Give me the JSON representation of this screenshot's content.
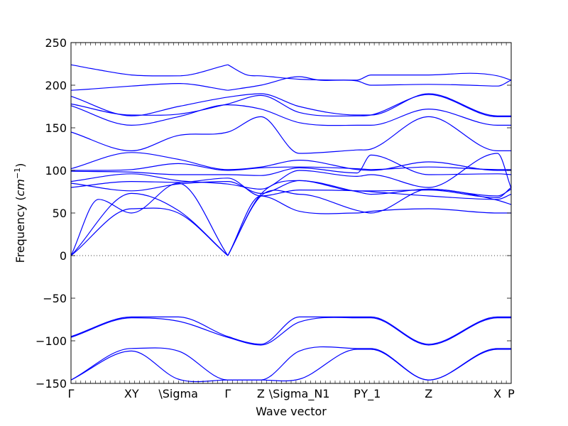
{
  "chart_data": {
    "type": "line",
    "title": "",
    "xlabel": "Wave vector",
    "ylabel_main": "Frequency (",
    "ylabel_unit": "cm",
    "ylabel_exp": "−1",
    "ylabel_close": ")",
    "xlim": [
      0,
      16
    ],
    "ylim": [
      -150,
      250
    ],
    "yticks": [
      -150,
      -100,
      -50,
      0,
      50,
      100,
      150,
      200,
      250
    ],
    "ytick_labels": [
      "−150",
      "−100",
      "−50",
      "0",
      "50",
      "100",
      "150",
      "200",
      "250"
    ],
    "high_symmetry_points": [
      {
        "x": 0.0,
        "label": "Γ"
      },
      {
        "x": 2.2,
        "label": "XY"
      },
      {
        "x": 3.9,
        "label": "\\Sigma"
      },
      {
        "x": 5.7,
        "label": "Γ"
      },
      {
        "x": 6.9,
        "label": "Z"
      },
      {
        "x": 8.3,
        "label": "\\Sigma_N1"
      },
      {
        "x": 10.4,
        "label": "P"
      },
      {
        "x": 10.9,
        "label": "Y_1"
      },
      {
        "x": 13.0,
        "label": "Z"
      },
      {
        "x": 15.5,
        "label": "X"
      },
      {
        "x": 16.0,
        "label": "P"
      }
    ],
    "zero_line": true,
    "grid": false,
    "legend": "none",
    "line_color": "#0000ff",
    "series": [
      {
        "x": [
          0,
          1.0,
          2.2,
          3.9,
          5.7
        ],
        "values": [
          224,
          218,
          212,
          211,
          224
        ]
      },
      {
        "x": [
          5.7,
          6.4,
          6.9,
          8.3,
          10.4,
          10.9,
          13.0,
          14.5,
          15.5,
          16.0
        ],
        "values": [
          224,
          212,
          211,
          207,
          206,
          212,
          212,
          214,
          211,
          206
        ]
      },
      {
        "x": [
          0,
          0.5,
          2.2,
          3.9,
          5.7
        ],
        "values": [
          194,
          195,
          199,
          202,
          194
        ]
      },
      {
        "x": [
          5.7,
          6.9,
          8.3,
          9.0,
          10.4,
          10.9,
          13.0,
          14.5,
          15.5,
          16.0
        ],
        "values": [
          194,
          200,
          210,
          206,
          205,
          200,
          201,
          200,
          199,
          206
        ]
      },
      {
        "x": [
          0,
          2.2,
          3.9,
          5.7,
          6.9,
          8.3,
          10.4,
          10.9,
          13.0,
          15.5,
          16.0
        ],
        "values": [
          187,
          164,
          175,
          186,
          190,
          175,
          165,
          165,
          190,
          164,
          164
        ]
      },
      {
        "x": [
          0,
          2.2,
          3.9,
          5.7,
          6.9,
          8.3,
          10.4,
          10.9,
          13.0,
          15.5,
          16.0
        ],
        "values": [
          178,
          165,
          166,
          178,
          188,
          168,
          164,
          165,
          189,
          163,
          163
        ]
      },
      {
        "x": [
          0,
          2.2,
          3.9,
          5.7,
          6.9,
          8.3,
          10.4,
          10.9,
          13.0,
          15.5,
          16.0
        ],
        "values": [
          176,
          153,
          163,
          177,
          172,
          156,
          153,
          153,
          172,
          153,
          153
        ]
      },
      {
        "x": [
          0,
          2.2,
          3.9,
          5.7,
          6.9,
          8.3,
          10.4,
          10.9,
          13.0,
          15.5,
          16.0
        ],
        "values": [
          145,
          123,
          141,
          145,
          163,
          120,
          124,
          125,
          163,
          123,
          123
        ]
      },
      {
        "x": [
          0,
          2.2,
          3.9,
          5.7,
          6.9,
          8.3,
          10.4,
          10.9,
          13.0,
          15.5,
          16.0
        ],
        "values": [
          102,
          121,
          113,
          101,
          104,
          112,
          101,
          100,
          110,
          100,
          100
        ]
      },
      {
        "x": [
          0,
          2.2,
          3.9,
          5.7,
          6.9,
          8.3,
          10.4,
          10.9,
          13.0,
          15.5,
          16.0
        ],
        "values": [
          100,
          101,
          108,
          100,
          103,
          104,
          102,
          101,
          104,
          101,
          101
        ]
      },
      {
        "x": [
          0,
          2.2,
          3.9,
          5.7,
          6.9,
          8.3,
          10.4,
          10.9,
          13.0,
          15.5,
          16.0
        ],
        "values": [
          99,
          98,
          95,
          95,
          94,
          103,
          97,
          118,
          95,
          96,
          95
        ]
      },
      {
        "x": [
          0,
          2.2,
          3.9,
          5.7,
          6.9,
          8.3,
          10.4,
          10.9,
          13.0,
          15.5,
          16.0
        ],
        "values": [
          87,
          96,
          88,
          84,
          78,
          100,
          93,
          95,
          80,
          120,
          79
        ]
      },
      {
        "x": [
          0,
          2.2,
          3.9,
          5.7,
          6.9,
          8.3,
          10.4,
          10.9,
          13.0,
          15.5,
          16.0
        ],
        "values": [
          85,
          76,
          84,
          87,
          73,
          88,
          76,
          76,
          77,
          68,
          80
        ]
      },
      {
        "x": [
          0,
          2.2,
          3.9,
          5.7,
          6.9,
          8.3,
          10.4,
          10.9,
          13.0,
          15.5,
          16.0
        ],
        "values": [
          80,
          87,
          86,
          91,
          70,
          77,
          76,
          75,
          70,
          66,
          72
        ]
      },
      {
        "x": [
          0,
          1.0,
          2.2,
          3.9,
          5.7
        ],
        "values": [
          0,
          66,
          50,
          85,
          0
        ]
      },
      {
        "x": [
          0,
          2.2,
          3.9,
          5.7
        ],
        "values": [
          0,
          73,
          53,
          0
        ]
      },
      {
        "x": [
          0,
          2.2,
          3.9,
          5.7
        ],
        "values": [
          0,
          55,
          50,
          0
        ]
      },
      {
        "x": [
          5.7,
          6.9,
          8.3,
          10.4,
          10.9,
          13.0,
          15.5,
          16.0
        ],
        "values": [
          0,
          70,
          52,
          50,
          52,
          55,
          50,
          50
        ]
      },
      {
        "x": [
          5.7,
          6.9,
          8.3,
          10.4,
          10.9,
          13.0,
          15.5,
          16.0
        ],
        "values": [
          0,
          70,
          72,
          53,
          50,
          78,
          65,
          60
        ]
      },
      {
        "x": [
          5.7,
          6.9,
          8.3,
          10.4,
          10.9,
          13.0,
          15.5,
          16.0
        ],
        "values": [
          0,
          72,
          88,
          75,
          72,
          78,
          70,
          78
        ]
      },
      {
        "x": [
          0,
          2.2,
          3.9,
          5.7,
          6.9,
          8.3,
          10.4,
          10.9,
          13.0,
          15.5,
          16.0
        ],
        "values": [
          -95,
          -72,
          -72,
          -95,
          -104,
          -72,
          -72,
          -72,
          -104,
          -72,
          -72
        ]
      },
      {
        "x": [
          0,
          2.2,
          3.9,
          5.7,
          6.9,
          8.3,
          10.4,
          10.9,
          13.0,
          15.5,
          16.0
        ],
        "values": [
          -96,
          -73,
          -77,
          -96,
          -105,
          -78,
          -73,
          -73,
          -105,
          -73,
          -73
        ]
      },
      {
        "x": [
          0,
          2.2,
          3.9,
          5.7,
          6.9,
          8.3,
          10.4,
          10.9,
          13.0,
          15.5,
          16.0
        ],
        "values": [
          -146,
          -109,
          -112,
          -146,
          -146,
          -112,
          -109,
          -109,
          -146,
          -109,
          -109
        ]
      },
      {
        "x": [
          0,
          2.2,
          3.9,
          5.7,
          6.9,
          8.3,
          10.4,
          10.9,
          13.0,
          15.5,
          16.0
        ],
        "values": [
          -146,
          -112,
          -145,
          -146,
          -146,
          -145,
          -110,
          -110,
          -146,
          -110,
          -110
        ]
      }
    ]
  }
}
